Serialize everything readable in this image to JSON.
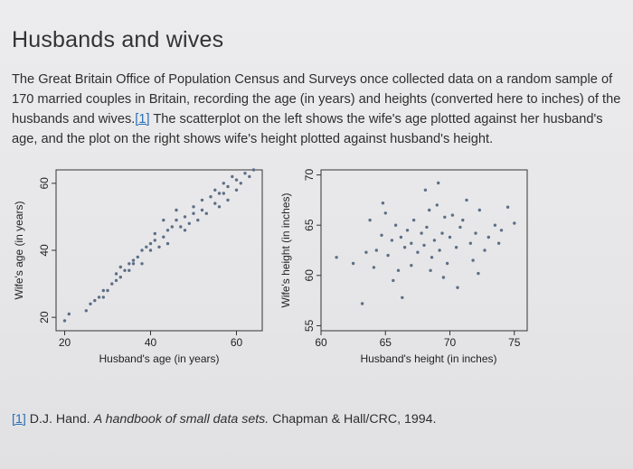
{
  "page": {
    "title": "Husbands and wives",
    "intro_before_ref": "The Great Britain Office of Population Census and Surveys once collected data on a random sample of 170 married couples in Britain, recording the age (in years) and heights (converted here to inches) of the husbands and wives.",
    "intro_ref": "[1]",
    "intro_after_ref": " The scatterplot on the left shows the wife's age plotted against her husband's age, and the plot on the right shows wife's height plotted against husband's height.",
    "footnote_ref": "[1]",
    "footnote_author": " D.J. Hand. ",
    "footnote_book": "A handbook of small data sets.",
    "footnote_publisher": " Chapman & Hall/CRC, 1994."
  },
  "chart_data": [
    {
      "type": "scatter",
      "title": "",
      "xlabel": "Husband's age (in years)",
      "ylabel": "Wife's age (in years)",
      "xlim": [
        18,
        66
      ],
      "ylim": [
        16,
        64
      ],
      "xticks": [
        20,
        40,
        60
      ],
      "yticks": [
        20,
        40,
        60
      ],
      "x": [
        20,
        21,
        25,
        26,
        27,
        28,
        29,
        29,
        30,
        31,
        32,
        32,
        33,
        33,
        34,
        35,
        35,
        36,
        36,
        37,
        38,
        38,
        39,
        40,
        40,
        41,
        41,
        42,
        43,
        43,
        44,
        44,
        45,
        46,
        46,
        47,
        48,
        48,
        49,
        50,
        50,
        51,
        52,
        52,
        53,
        54,
        55,
        55,
        56,
        56,
        57,
        57,
        58,
        58,
        59,
        60,
        60,
        61,
        62,
        63,
        64
      ],
      "y": [
        19,
        21,
        22,
        24,
        25,
        26,
        26,
        28,
        28,
        30,
        31,
        33,
        32,
        35,
        34,
        34,
        36,
        36,
        37,
        38,
        36,
        40,
        41,
        40,
        42,
        43,
        45,
        41,
        44,
        49,
        42,
        46,
        47,
        49,
        52,
        47,
        46,
        50,
        48,
        51,
        53,
        49,
        52,
        55,
        51,
        56,
        54,
        58,
        53,
        57,
        57,
        60,
        55,
        59,
        62,
        58,
        61,
        60,
        63,
        62,
        64
      ]
    },
    {
      "type": "scatter",
      "title": "",
      "xlabel": "Husband's height (in inches)",
      "ylabel": "Wife's height (in inches)",
      "xlim": [
        60,
        76
      ],
      "ylim": [
        54.5,
        70.5
      ],
      "xticks": [
        60,
        65,
        70,
        75
      ],
      "yticks": [
        55,
        60,
        65,
        70
      ],
      "x": [
        61.2,
        62.5,
        63.2,
        63.8,
        64.1,
        64.3,
        64.7,
        65,
        65.2,
        65.5,
        65.8,
        66,
        66.2,
        66.5,
        66.7,
        67,
        67.2,
        67.5,
        67.8,
        68,
        68.2,
        68.4,
        68.6,
        68.8,
        69,
        69.2,
        69.4,
        69.6,
        69.8,
        70,
        70.2,
        70.5,
        70.8,
        71,
        71.3,
        71.6,
        72,
        72.3,
        72.7,
        73,
        73.5,
        74,
        74.5,
        75,
        68.5,
        67,
        69.5,
        71.8,
        65.6,
        70.6,
        72.2,
        66.3,
        63.5,
        64.8,
        73.8,
        68.1,
        69.1
      ],
      "y": [
        61.8,
        61.2,
        57.2,
        65.5,
        60.8,
        62.5,
        64,
        66.2,
        62,
        63.5,
        65,
        60.5,
        63.8,
        62.8,
        64.5,
        63.2,
        65.5,
        62.3,
        64.2,
        63,
        64.8,
        66.5,
        61.8,
        63.5,
        67,
        62.5,
        64.2,
        65.8,
        61.2,
        63.8,
        66,
        62.8,
        64.8,
        65.5,
        67.5,
        63.2,
        64.2,
        66.5,
        62.5,
        63.8,
        65,
        64.5,
        66.8,
        65.2,
        60.5,
        61,
        59.8,
        61.5,
        59.5,
        58.8,
        60.2,
        57.8,
        62.3,
        67.2,
        63.2,
        68.5,
        69.2
      ]
    }
  ]
}
